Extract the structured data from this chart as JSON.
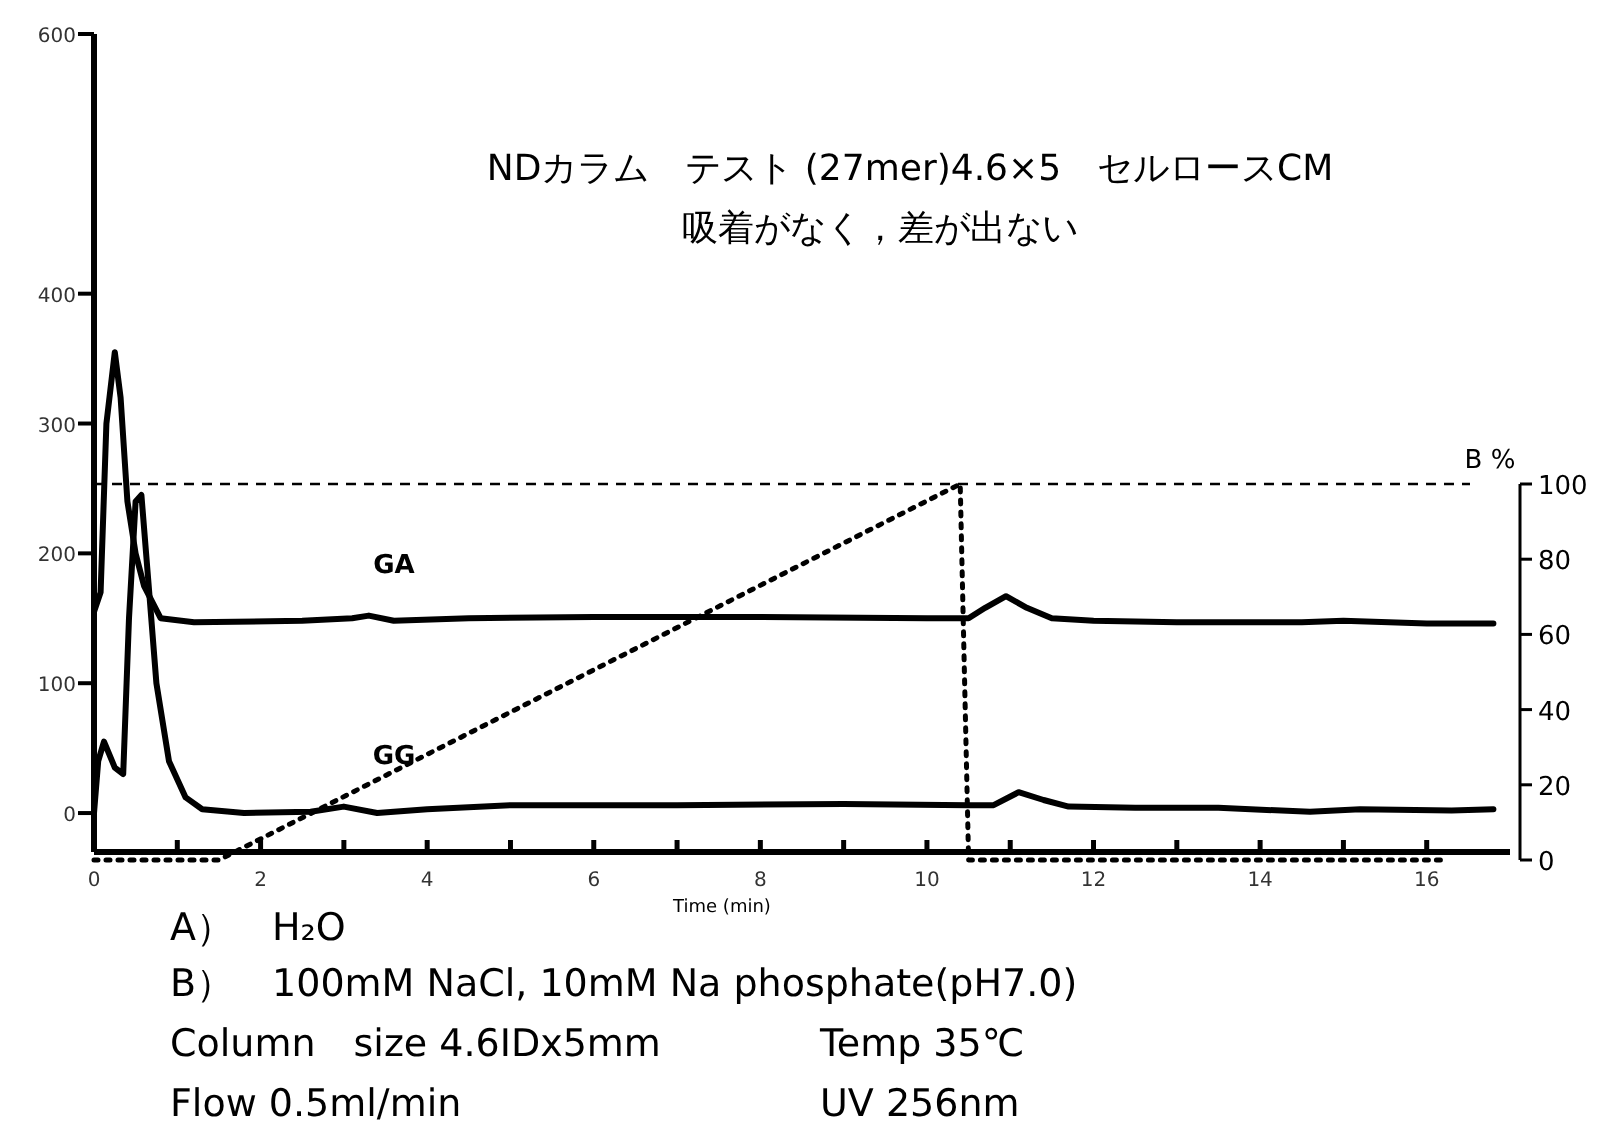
{
  "chart_data": {
    "type": "line",
    "title": "NDカラム　テスト (27mer)4.6×5　セルロースCM",
    "subtitle": "吸着がなく，差が出ない",
    "xlabel": "Time (min)",
    "y2label": "B %",
    "xlim": [
      0,
      17
    ],
    "xticks": [
      0,
      {
        "value": 1,
        "label": null
      },
      2,
      {
        "value": 3,
        "label": null
      },
      4,
      {
        "value": 5,
        "label": null
      },
      6,
      {
        "value": 7,
        "label": null
      },
      8,
      {
        "value": 9,
        "label": null
      },
      10,
      {
        "value": 11,
        "label": null
      },
      12,
      {
        "value": 13,
        "label": null
      },
      14,
      {
        "value": 15,
        "label": null
      },
      16
    ],
    "ylim": [
      -30,
      600
    ],
    "yticks": [
      0,
      100,
      200,
      300,
      400,
      600
    ],
    "y2lim": [
      0,
      100
    ],
    "y2ticks": [
      0,
      20,
      40,
      60,
      80,
      100
    ],
    "line_style": "solid",
    "series": [
      {
        "name": "GA",
        "color": "#000000",
        "x": [
          0,
          0.08,
          0.15,
          0.25,
          0.32,
          0.4,
          0.5,
          0.6,
          0.8,
          1.2,
          2.5,
          3.1,
          3.3,
          3.6,
          4.5,
          6,
          8,
          10,
          10.5,
          10.7,
          10.95,
          11.2,
          11.5,
          12,
          13,
          14.5,
          15,
          16,
          16.8
        ],
        "values": [
          155,
          170,
          300,
          355,
          320,
          240,
          200,
          175,
          150,
          147,
          148,
          150,
          152,
          148,
          150,
          151,
          151,
          150,
          150,
          158,
          167,
          158,
          150,
          148,
          147,
          147,
          148,
          146,
          146
        ]
      },
      {
        "name": "GG",
        "color": "#000000",
        "x": [
          0,
          0.05,
          0.12,
          0.25,
          0.35,
          0.42,
          0.5,
          0.57,
          0.65,
          0.75,
          0.9,
          1.1,
          1.3,
          1.8,
          2.6,
          3.0,
          3.4,
          4.0,
          5.0,
          7,
          9,
          10.5,
          10.8,
          11.1,
          11.4,
          11.7,
          12.5,
          13.5,
          14.6,
          15.2,
          16.3,
          16.8
        ],
        "values": [
          0,
          40,
          55,
          35,
          30,
          150,
          240,
          245,
          180,
          100,
          40,
          12,
          3,
          0,
          1,
          5,
          0,
          3,
          6,
          6,
          7,
          6,
          6,
          16,
          10,
          5,
          4,
          4,
          1,
          3,
          2,
          3
        ]
      },
      {
        "color": "#000000",
        "axis": "y2",
        "line_style": "dotted",
        "x": [
          0,
          1.5,
          10.4,
          10.5,
          16.2
        ],
        "values": [
          0,
          0,
          100,
          0,
          0
        ]
      }
    ],
    "ref_lines": [
      {
        "axis": "y2",
        "value": 100,
        "line_style": "dashed",
        "color": "#000000"
      }
    ],
    "annotations": [
      "A）　H₂O",
      "B）　100mM NaCl, 10mM Na phosphate(pH7.0)",
      "Column　size 4.6IDx5mm",
      "Temp 35℃",
      "Flow 0.5ml/min",
      "UV 256nm"
    ]
  }
}
